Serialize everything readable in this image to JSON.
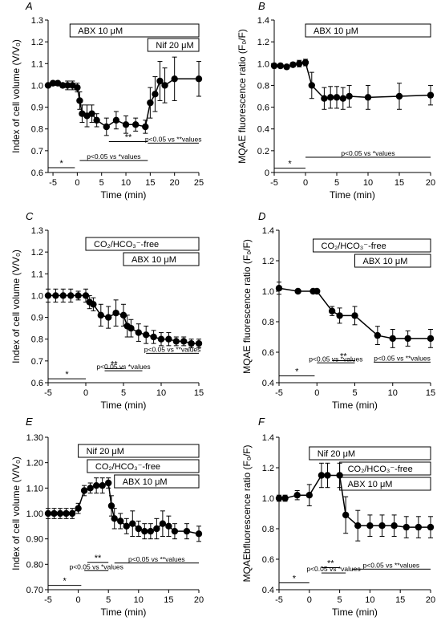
{
  "chart_data": [
    {
      "panel": "A",
      "type": "line",
      "ylabel": "Index of cell volume (V/V₀)",
      "xlabel": "Time (min)",
      "xlim": [
        -6,
        25
      ],
      "ylim": [
        0.6,
        1.3
      ],
      "xticks": [
        -5,
        0,
        5,
        10,
        15,
        20,
        25
      ],
      "yticks": [
        0.6,
        0.7,
        0.8,
        0.9,
        1.0,
        1.1,
        1.2,
        1.3
      ],
      "yfmt": 1,
      "series": [
        {
          "x": [
            -6,
            -5,
            -4,
            -3,
            -2,
            -1,
            0,
            0.5,
            1,
            2,
            3,
            4,
            6,
            8,
            10,
            12,
            14,
            15,
            16,
            17,
            18,
            20,
            25
          ],
          "y": [
            1.0,
            1.01,
            1.01,
            1.0,
            1.0,
            1.0,
            0.99,
            0.93,
            0.87,
            0.86,
            0.87,
            0.84,
            0.81,
            0.84,
            0.82,
            0.82,
            0.81,
            0.92,
            0.96,
            1.02,
            1.0,
            1.03,
            1.03
          ],
          "err": [
            0.01,
            0.01,
            0.01,
            0.01,
            0.02,
            0.02,
            0.02,
            0.04,
            0.04,
            0.05,
            0.04,
            0.03,
            0.04,
            0.04,
            0.04,
            0.03,
            0.03,
            0.07,
            0.08,
            0.09,
            0.08,
            0.1,
            0.08
          ]
        }
      ],
      "bars": [
        {
          "label": "ABX 10 μM",
          "x0": -1.5,
          "x1": 25,
          "row": 0
        },
        {
          "label": "Nif 20 μM",
          "x0": 14.5,
          "x1": 25,
          "row": 1
        }
      ],
      "annotations": [
        {
          "text": "*",
          "x0": -6,
          "x1": -0.5,
          "y": 0.622,
          "style": "star"
        },
        {
          "text": "p<0.05 vs *values",
          "x0": 0.5,
          "x1": 14.5,
          "y": 0.655,
          "style": "p"
        },
        {
          "text": "**",
          "x0": 6.5,
          "x1": 14.5,
          "y": 0.742,
          "style": "star"
        },
        {
          "text": "p<0.05 vs **values",
          "x0": 14.5,
          "x1": 25,
          "y": 0.735,
          "style": "p"
        }
      ]
    },
    {
      "panel": "B",
      "type": "line",
      "ylabel": "MQAE fluorescence ratio (F₀/F)",
      "xlabel": "Time (min)",
      "xlim": [
        -5,
        20
      ],
      "ylim": [
        0,
        1.4
      ],
      "xticks": [
        -5,
        0,
        5,
        10,
        15,
        20
      ],
      "yticks": [
        0,
        0.2,
        0.4,
        0.6,
        0.8,
        1.0,
        1.2,
        1.4
      ],
      "ytickLabels": [
        "0",
        "0.2",
        "0.4",
        "0.6",
        "0.8",
        "1.0",
        "1.2",
        "1.4"
      ],
      "series": [
        {
          "x": [
            -5,
            -4,
            -3,
            -2,
            -1,
            0,
            1,
            3,
            4,
            5,
            6,
            7,
            10,
            15,
            20
          ],
          "y": [
            0.98,
            0.98,
            0.97,
            0.99,
            1.0,
            1.01,
            0.8,
            0.68,
            0.69,
            0.69,
            0.68,
            0.7,
            0.69,
            0.7,
            0.71
          ],
          "err": [
            0.02,
            0.02,
            0.02,
            0.02,
            0.03,
            0.03,
            0.12,
            0.1,
            0.1,
            0.1,
            0.1,
            0.1,
            0.11,
            0.12,
            0.09
          ]
        }
      ],
      "bars": [
        {
          "label": "ABX 10 μM",
          "x0": 0,
          "x1": 20,
          "row": 0
        }
      ],
      "annotations": [
        {
          "text": "*",
          "x0": -5,
          "x1": 0,
          "y": 0.04,
          "style": "star"
        },
        {
          "text": "p<0.05 vs *values",
          "x0": 0,
          "x1": 20,
          "y": 0.14,
          "style": "p"
        }
      ]
    },
    {
      "panel": "C",
      "type": "line",
      "ylabel": "Index of cell volume (V/V₀)",
      "xlabel": "Time (min)",
      "xlim": [
        -5,
        15
      ],
      "ylim": [
        0.6,
        1.3
      ],
      "xticks": [
        -5,
        0,
        5,
        10,
        15
      ],
      "yticks": [
        0.6,
        0.7,
        0.8,
        0.9,
        1.0,
        1.1,
        1.2,
        1.3
      ],
      "yfmt": 1,
      "series": [
        {
          "x": [
            -5,
            -4,
            -3,
            -2,
            -1,
            0,
            0.5,
            1,
            2,
            3,
            4,
            5,
            5.5,
            6,
            7,
            8,
            9,
            10,
            11,
            12,
            13,
            14,
            15
          ],
          "y": [
            1.0,
            1.0,
            1.0,
            1.0,
            1.0,
            1.0,
            0.97,
            0.96,
            0.91,
            0.9,
            0.92,
            0.91,
            0.86,
            0.85,
            0.83,
            0.82,
            0.81,
            0.8,
            0.8,
            0.79,
            0.79,
            0.78,
            0.78
          ],
          "err": [
            0.03,
            0.03,
            0.03,
            0.03,
            0.02,
            0.03,
            0.03,
            0.03,
            0.05,
            0.05,
            0.06,
            0.05,
            0.05,
            0.04,
            0.04,
            0.04,
            0.03,
            0.03,
            0.03,
            0.02,
            0.02,
            0.02,
            0.02
          ]
        }
      ],
      "bars": [
        {
          "label": "CO₂/HCO₃⁻-free",
          "x0": 0,
          "x1": 15,
          "row": 0
        },
        {
          "label": "ABX 10 μM",
          "x0": 5,
          "x1": 15,
          "row": 1
        }
      ],
      "annotations": [
        {
          "text": "*",
          "x0": -5,
          "x1": 0,
          "y": 0.618,
          "style": "star"
        },
        {
          "text": "**",
          "x0": 2.5,
          "x1": 5,
          "y": 0.665,
          "style": "star"
        },
        {
          "text": "p<0.05 vs *values",
          "x0": 2.5,
          "x1": 7.5,
          "y": 0.655,
          "style": "p"
        },
        {
          "text": "p<0.05 vs **values",
          "x0": 8,
          "x1": 15,
          "y": 0.735,
          "style": "p"
        }
      ]
    },
    {
      "panel": "D",
      "type": "line",
      "ylabel": "MQAE fluorescence ratio (F₀/F)",
      "xlabel": "Time (min)",
      "xlim": [
        -5,
        15
      ],
      "ylim": [
        0.4,
        1.4
      ],
      "xticks": [
        -5,
        0,
        5,
        10,
        15
      ],
      "yticks": [
        0.4,
        0.6,
        0.8,
        1.0,
        1.2,
        1.4
      ],
      "yfmt": 1,
      "series": [
        {
          "x": [
            -5,
            -2.5,
            -0.5,
            0,
            2,
            3,
            5,
            8,
            10,
            12,
            15
          ],
          "y": [
            1.02,
            1.0,
            1.0,
            1.0,
            0.87,
            0.84,
            0.84,
            0.71,
            0.69,
            0.69,
            0.69
          ],
          "err": [
            0.04,
            0.01,
            0.01,
            0.01,
            0.03,
            0.05,
            0.06,
            0.06,
            0.06,
            0.05,
            0.06
          ]
        }
      ],
      "bars": [
        {
          "label": "CO₂/HCO₃⁻-free",
          "x0": -0.5,
          "x1": 15,
          "row": 0
        },
        {
          "label": "ABX 10 μM",
          "x0": 5,
          "x1": 15,
          "row": 1
        }
      ],
      "annotations": [
        {
          "text": "*",
          "x0": -5,
          "x1": -0.3,
          "y": 0.445,
          "style": "star"
        },
        {
          "text": "**",
          "x0": 2,
          "x1": 5,
          "y": 0.545,
          "style": "star"
        },
        {
          "text": "p<0.05 vs *values",
          "x0": 0,
          "x1": 5,
          "y": 0.53,
          "style": "p"
        },
        {
          "text": "p<0.05 vs **values",
          "x0": 7.5,
          "x1": 15,
          "y": 0.535,
          "style": "p"
        }
      ]
    },
    {
      "panel": "E",
      "type": "line",
      "ylabel": "Index of cell volume (V/V₀)",
      "xlabel": "Time (min)",
      "xlim": [
        -5,
        20
      ],
      "ylim": [
        0.7,
        1.3
      ],
      "xticks": [
        -5,
        0,
        5,
        10,
        15,
        20
      ],
      "yticks": [
        0.7,
        0.8,
        0.9,
        1.0,
        1.1,
        1.2,
        1.3
      ],
      "yfmt": 2,
      "series": [
        {
          "x": [
            -5,
            -4,
            -3,
            -2,
            -1,
            0,
            1,
            2,
            3,
            4,
            5,
            5.5,
            6,
            7,
            8,
            9,
            10,
            11,
            12,
            13,
            14,
            15,
            16,
            18,
            20
          ],
          "y": [
            1.0,
            1.0,
            1.0,
            1.0,
            1.0,
            1.02,
            1.09,
            1.1,
            1.11,
            1.11,
            1.12,
            1.03,
            0.98,
            0.97,
            0.95,
            0.96,
            0.94,
            0.93,
            0.93,
            0.94,
            0.96,
            0.95,
            0.93,
            0.93,
            0.92
          ],
          "err": [
            0.02,
            0.02,
            0.02,
            0.02,
            0.02,
            0.02,
            0.02,
            0.02,
            0.03,
            0.03,
            0.02,
            0.04,
            0.04,
            0.03,
            0.03,
            0.05,
            0.03,
            0.03,
            0.03,
            0.04,
            0.05,
            0.04,
            0.03,
            0.03,
            0.03
          ]
        }
      ],
      "bars": [
        {
          "label": "Nif 20 μM",
          "x0": 0,
          "x1": 20,
          "row": 0
        },
        {
          "label": "CO₂/HCO₃⁻-free",
          "x0": 1.5,
          "x1": 20,
          "row": 1
        },
        {
          "label": "ABX 10 μM",
          "x0": 6,
          "x1": 20,
          "row": 2
        }
      ],
      "annotations": [
        {
          "text": "*",
          "x0": -5,
          "x1": 0.5,
          "y": 0.717,
          "style": "star"
        },
        {
          "text": "**",
          "x0": 1.5,
          "x1": 5,
          "y": 0.807,
          "style": "star"
        },
        {
          "text": "p<0.05 vs *values",
          "x0": 1,
          "x1": 5,
          "y": 0.775,
          "style": "p"
        },
        {
          "text": "p<0.05 vs **values",
          "x0": 6,
          "x1": 20,
          "y": 0.805,
          "style": "p"
        }
      ]
    },
    {
      "panel": "F",
      "type": "line",
      "ylabel": "MQAEbfluorescence ratio (F₀/F)",
      "xlabel": "Time (min)",
      "xlim": [
        -5,
        20
      ],
      "ylim": [
        0.4,
        1.4
      ],
      "xticks": [
        -5,
        0,
        5,
        10,
        15,
        20
      ],
      "yticks": [
        0.4,
        0.6,
        0.8,
        1.0,
        1.2,
        1.4
      ],
      "yfmt": 1,
      "series": [
        {
          "x": [
            -5,
            -4,
            -2,
            0,
            2,
            3,
            5,
            6,
            8,
            10,
            12,
            14,
            16,
            18,
            20
          ],
          "y": [
            1.0,
            1.0,
            1.02,
            1.02,
            1.15,
            1.15,
            1.15,
            0.89,
            0.82,
            0.82,
            0.82,
            0.82,
            0.81,
            0.81,
            0.81
          ],
          "err": [
            0.02,
            0.02,
            0.03,
            0.07,
            0.08,
            0.08,
            0.08,
            0.12,
            0.1,
            0.07,
            0.07,
            0.07,
            0.07,
            0.07,
            0.07
          ]
        }
      ],
      "bars": [
        {
          "label": "Nif 20 μM",
          "x0": 0,
          "x1": 20,
          "row": 0
        },
        {
          "label": "CO₂/HCO₃⁻-free",
          "x0": 5,
          "x1": 20,
          "row": 1
        },
        {
          "label": "ABX 10 μM",
          "x0": 5,
          "x1": 20,
          "row": 2
        }
      ],
      "annotations": [
        {
          "text": "*",
          "x0": -5,
          "x1": 0,
          "y": 0.445,
          "style": "star"
        },
        {
          "text": "**",
          "x0": 2,
          "x1": 5,
          "y": 0.545,
          "style": "star"
        },
        {
          "text": "p<0.05 vs *values",
          "x0": 2,
          "x1": 6,
          "y": 0.51,
          "style": "p"
        },
        {
          "text": "p<0.05 vs **values",
          "x0": 7,
          "x1": 20,
          "y": 0.535,
          "style": "p"
        }
      ]
    }
  ]
}
